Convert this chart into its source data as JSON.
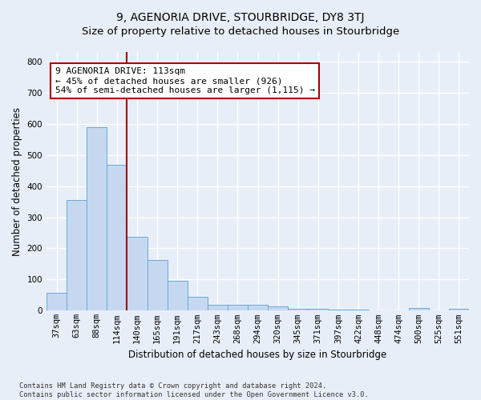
{
  "title": "9, AGENORIA DRIVE, STOURBRIDGE, DY8 3TJ",
  "subtitle": "Size of property relative to detached houses in Stourbridge",
  "xlabel": "Distribution of detached houses by size in Stourbridge",
  "ylabel": "Number of detached properties",
  "footer1": "Contains HM Land Registry data © Crown copyright and database right 2024.",
  "footer2": "Contains public sector information licensed under the Open Government Licence v3.0.",
  "bin_labels": [
    "37sqm",
    "63sqm",
    "88sqm",
    "114sqm",
    "140sqm",
    "165sqm",
    "191sqm",
    "217sqm",
    "243sqm",
    "268sqm",
    "294sqm",
    "320sqm",
    "345sqm",
    "371sqm",
    "397sqm",
    "422sqm",
    "448sqm",
    "474sqm",
    "500sqm",
    "525sqm",
    "551sqm"
  ],
  "bar_values": [
    57,
    355,
    590,
    468,
    237,
    163,
    95,
    45,
    20,
    19,
    19,
    14,
    7,
    5,
    4,
    3,
    2,
    1,
    8,
    2,
    5
  ],
  "bar_color": "#c5d8f0",
  "bar_edge_color": "#6aaad4",
  "vline_x_bin": 3,
  "vline_color": "#aa0000",
  "annotation_line1": "9 AGENORIA DRIVE: 113sqm",
  "annotation_line2": "← 45% of detached houses are smaller (926)",
  "annotation_line3": "54% of semi-detached houses are larger (1,115) →",
  "annotation_box_color": "#ffffff",
  "annotation_box_edge": "#aa0000",
  "ylim": [
    0,
    830
  ],
  "yticks": [
    0,
    100,
    200,
    300,
    400,
    500,
    600,
    700,
    800
  ],
  "background_color": "#e8eef8",
  "grid_color": "#ffffff",
  "title_fontsize": 10,
  "axis_label_fontsize": 8.5,
  "tick_fontsize": 7.5,
  "annotation_fontsize": 8,
  "ylabel_fontsize": 8.5
}
